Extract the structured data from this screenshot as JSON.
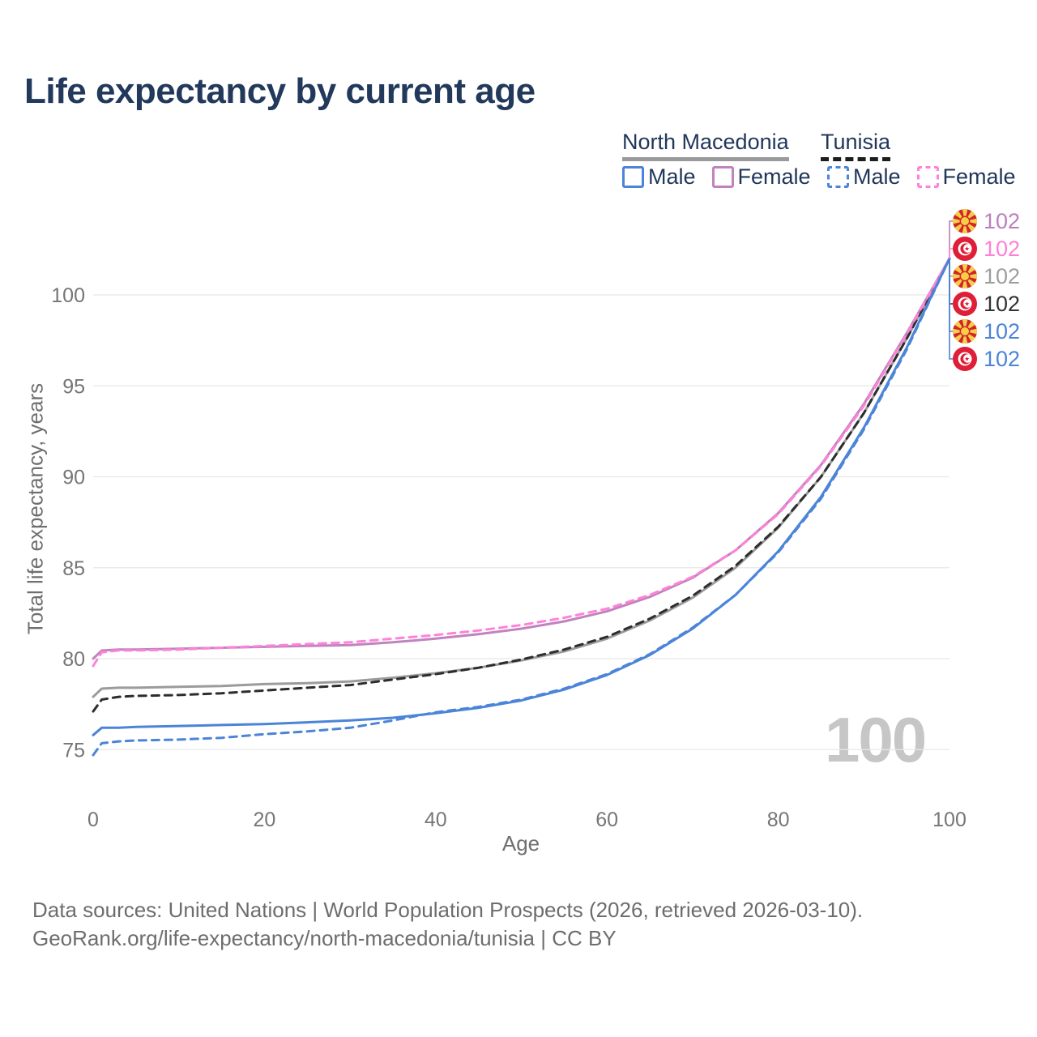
{
  "title": "Life expectancy by current age",
  "legend": {
    "groups": [
      {
        "label": "North Macedonia",
        "line_style": "solid",
        "underline_color": "#9a9a9a",
        "items": [
          {
            "label": "Male",
            "color": "#4b84d8",
            "dashed": false
          },
          {
            "label": "Female",
            "color": "#c083bd",
            "dashed": false
          }
        ]
      },
      {
        "label": "Tunisia",
        "line_style": "dashed",
        "underline_color": "#1d1d1d",
        "items": [
          {
            "label": "Male",
            "color": "#4b84d8",
            "dashed": true
          },
          {
            "label": "Female",
            "color": "#ff82d9",
            "dashed": true
          }
        ]
      }
    ]
  },
  "watermark": "100",
  "footer": {
    "line1": "Data sources: United Nations | World Population Prospects (2026, retrieved 2026-03-10).",
    "line2": "GeoRank.org/life-expectancy/north-macedonia/tunisia | CC BY"
  },
  "right_labels": [
    {
      "value": "102",
      "country": "North Macedonia",
      "series": "Female",
      "flag": "mk",
      "color": "#bb7fba"
    },
    {
      "value": "102",
      "country": "Tunisia",
      "series": "Female",
      "flag": "tn",
      "color": "#ff80d5"
    },
    {
      "value": "102",
      "country": "North Macedonia",
      "series": "Overall",
      "flag": "mk",
      "color": "#9e9e9e"
    },
    {
      "value": "102",
      "country": "Tunisia",
      "series": "Overall",
      "flag": "tn",
      "color": "#333333"
    },
    {
      "value": "102",
      "country": "North Macedonia",
      "series": "Male",
      "flag": "mk",
      "color": "#4b84d8"
    },
    {
      "value": "102",
      "country": "Tunisia",
      "series": "Male",
      "flag": "tn",
      "color": "#4b84d8"
    }
  ],
  "chart_data": {
    "type": "line",
    "title": "Life expectancy by current age",
    "xlabel": "Age",
    "ylabel": "Total life expectancy, years",
    "x_ticks": [
      0,
      20,
      40,
      60,
      80,
      100
    ],
    "y_ticks": [
      75,
      80,
      85,
      90,
      95,
      100
    ],
    "xlim": [
      0,
      100
    ],
    "ylim": [
      73.5,
      103
    ],
    "grid": true,
    "legend_position": "top-right",
    "tick_color": "#767676",
    "grid_color": "#e8e8e8",
    "series": [
      {
        "name": "North Macedonia Overall",
        "color": "#9b9b9b",
        "dashed": false,
        "end_label": "102",
        "points": [
          [
            0,
            77.9
          ],
          [
            1,
            78.35
          ],
          [
            3,
            78.4
          ],
          [
            5,
            78.4
          ],
          [
            10,
            78.45
          ],
          [
            15,
            78.5
          ],
          [
            20,
            78.6
          ],
          [
            25,
            78.65
          ],
          [
            30,
            78.75
          ],
          [
            35,
            78.95
          ],
          [
            40,
            79.2
          ],
          [
            45,
            79.5
          ],
          [
            50,
            79.9
          ],
          [
            55,
            80.4
          ],
          [
            60,
            81.1
          ],
          [
            65,
            82.1
          ],
          [
            70,
            83.35
          ],
          [
            75,
            85.0
          ],
          [
            80,
            87.2
          ],
          [
            85,
            90.0
          ],
          [
            90,
            93.5
          ],
          [
            95,
            97.6
          ],
          [
            100,
            102
          ]
        ]
      },
      {
        "name": "Tunisia Overall",
        "color": "#2d2d2d",
        "dashed": true,
        "end_label": "102",
        "points": [
          [
            0,
            77.1
          ],
          [
            1,
            77.75
          ],
          [
            3,
            77.9
          ],
          [
            5,
            77.95
          ],
          [
            10,
            78.0
          ],
          [
            15,
            78.1
          ],
          [
            20,
            78.25
          ],
          [
            25,
            78.4
          ],
          [
            30,
            78.55
          ],
          [
            35,
            78.85
          ],
          [
            40,
            79.15
          ],
          [
            45,
            79.5
          ],
          [
            50,
            79.95
          ],
          [
            55,
            80.5
          ],
          [
            60,
            81.2
          ],
          [
            65,
            82.2
          ],
          [
            70,
            83.45
          ],
          [
            75,
            85.1
          ],
          [
            80,
            87.25
          ],
          [
            85,
            90.0
          ],
          [
            90,
            93.5
          ],
          [
            95,
            97.6
          ],
          [
            100,
            102
          ]
        ]
      },
      {
        "name": "North Macedonia Female",
        "color": "#c083bd",
        "dashed": false,
        "end_label": "102",
        "points": [
          [
            0,
            80.0
          ],
          [
            1,
            80.45
          ],
          [
            3,
            80.5
          ],
          [
            5,
            80.5
          ],
          [
            10,
            80.55
          ],
          [
            15,
            80.6
          ],
          [
            20,
            80.65
          ],
          [
            25,
            80.7
          ],
          [
            30,
            80.75
          ],
          [
            35,
            80.9
          ],
          [
            40,
            81.1
          ],
          [
            45,
            81.35
          ],
          [
            50,
            81.65
          ],
          [
            55,
            82.05
          ],
          [
            60,
            82.6
          ],
          [
            65,
            83.4
          ],
          [
            70,
            84.45
          ],
          [
            75,
            85.95
          ],
          [
            80,
            88.0
          ],
          [
            85,
            90.65
          ],
          [
            90,
            94.0
          ],
          [
            95,
            97.9
          ],
          [
            100,
            102
          ]
        ]
      },
      {
        "name": "Tunisia Female",
        "color": "#ff82d9",
        "dashed": true,
        "end_label": "102",
        "points": [
          [
            0,
            79.6
          ],
          [
            1,
            80.35
          ],
          [
            3,
            80.45
          ],
          [
            5,
            80.45
          ],
          [
            10,
            80.5
          ],
          [
            15,
            80.6
          ],
          [
            20,
            80.7
          ],
          [
            25,
            80.8
          ],
          [
            30,
            80.9
          ],
          [
            35,
            81.1
          ],
          [
            40,
            81.3
          ],
          [
            45,
            81.55
          ],
          [
            50,
            81.85
          ],
          [
            55,
            82.25
          ],
          [
            60,
            82.75
          ],
          [
            65,
            83.5
          ],
          [
            70,
            84.5
          ],
          [
            75,
            85.95
          ],
          [
            80,
            87.95
          ],
          [
            85,
            90.6
          ],
          [
            90,
            93.9
          ],
          [
            95,
            97.85
          ],
          [
            100,
            102
          ]
        ]
      },
      {
        "name": "North Macedonia Male",
        "color": "#4b84d8",
        "dashed": false,
        "end_label": "102",
        "points": [
          [
            0,
            75.8
          ],
          [
            1,
            76.2
          ],
          [
            3,
            76.2
          ],
          [
            5,
            76.25
          ],
          [
            10,
            76.3
          ],
          [
            15,
            76.35
          ],
          [
            20,
            76.4
          ],
          [
            25,
            76.5
          ],
          [
            30,
            76.6
          ],
          [
            35,
            76.75
          ],
          [
            40,
            77.0
          ],
          [
            45,
            77.3
          ],
          [
            50,
            77.7
          ],
          [
            55,
            78.3
          ],
          [
            60,
            79.1
          ],
          [
            65,
            80.2
          ],
          [
            70,
            81.65
          ],
          [
            75,
            83.5
          ],
          [
            80,
            85.9
          ],
          [
            85,
            88.9
          ],
          [
            90,
            92.7
          ],
          [
            95,
            97.1
          ],
          [
            100,
            102
          ]
        ]
      },
      {
        "name": "Tunisia Male",
        "color": "#4b84d8",
        "dashed": true,
        "end_label": "102",
        "points": [
          [
            0,
            74.7
          ],
          [
            1,
            75.35
          ],
          [
            3,
            75.45
          ],
          [
            5,
            75.5
          ],
          [
            10,
            75.55
          ],
          [
            15,
            75.65
          ],
          [
            20,
            75.85
          ],
          [
            25,
            76.0
          ],
          [
            30,
            76.2
          ],
          [
            35,
            76.6
          ],
          [
            40,
            77.05
          ],
          [
            45,
            77.35
          ],
          [
            50,
            77.75
          ],
          [
            55,
            78.35
          ],
          [
            60,
            79.15
          ],
          [
            65,
            80.25
          ],
          [
            70,
            81.7
          ],
          [
            75,
            83.5
          ],
          [
            80,
            85.85
          ],
          [
            85,
            88.8
          ],
          [
            90,
            92.6
          ],
          [
            95,
            97.0
          ],
          [
            100,
            102
          ]
        ]
      }
    ]
  }
}
